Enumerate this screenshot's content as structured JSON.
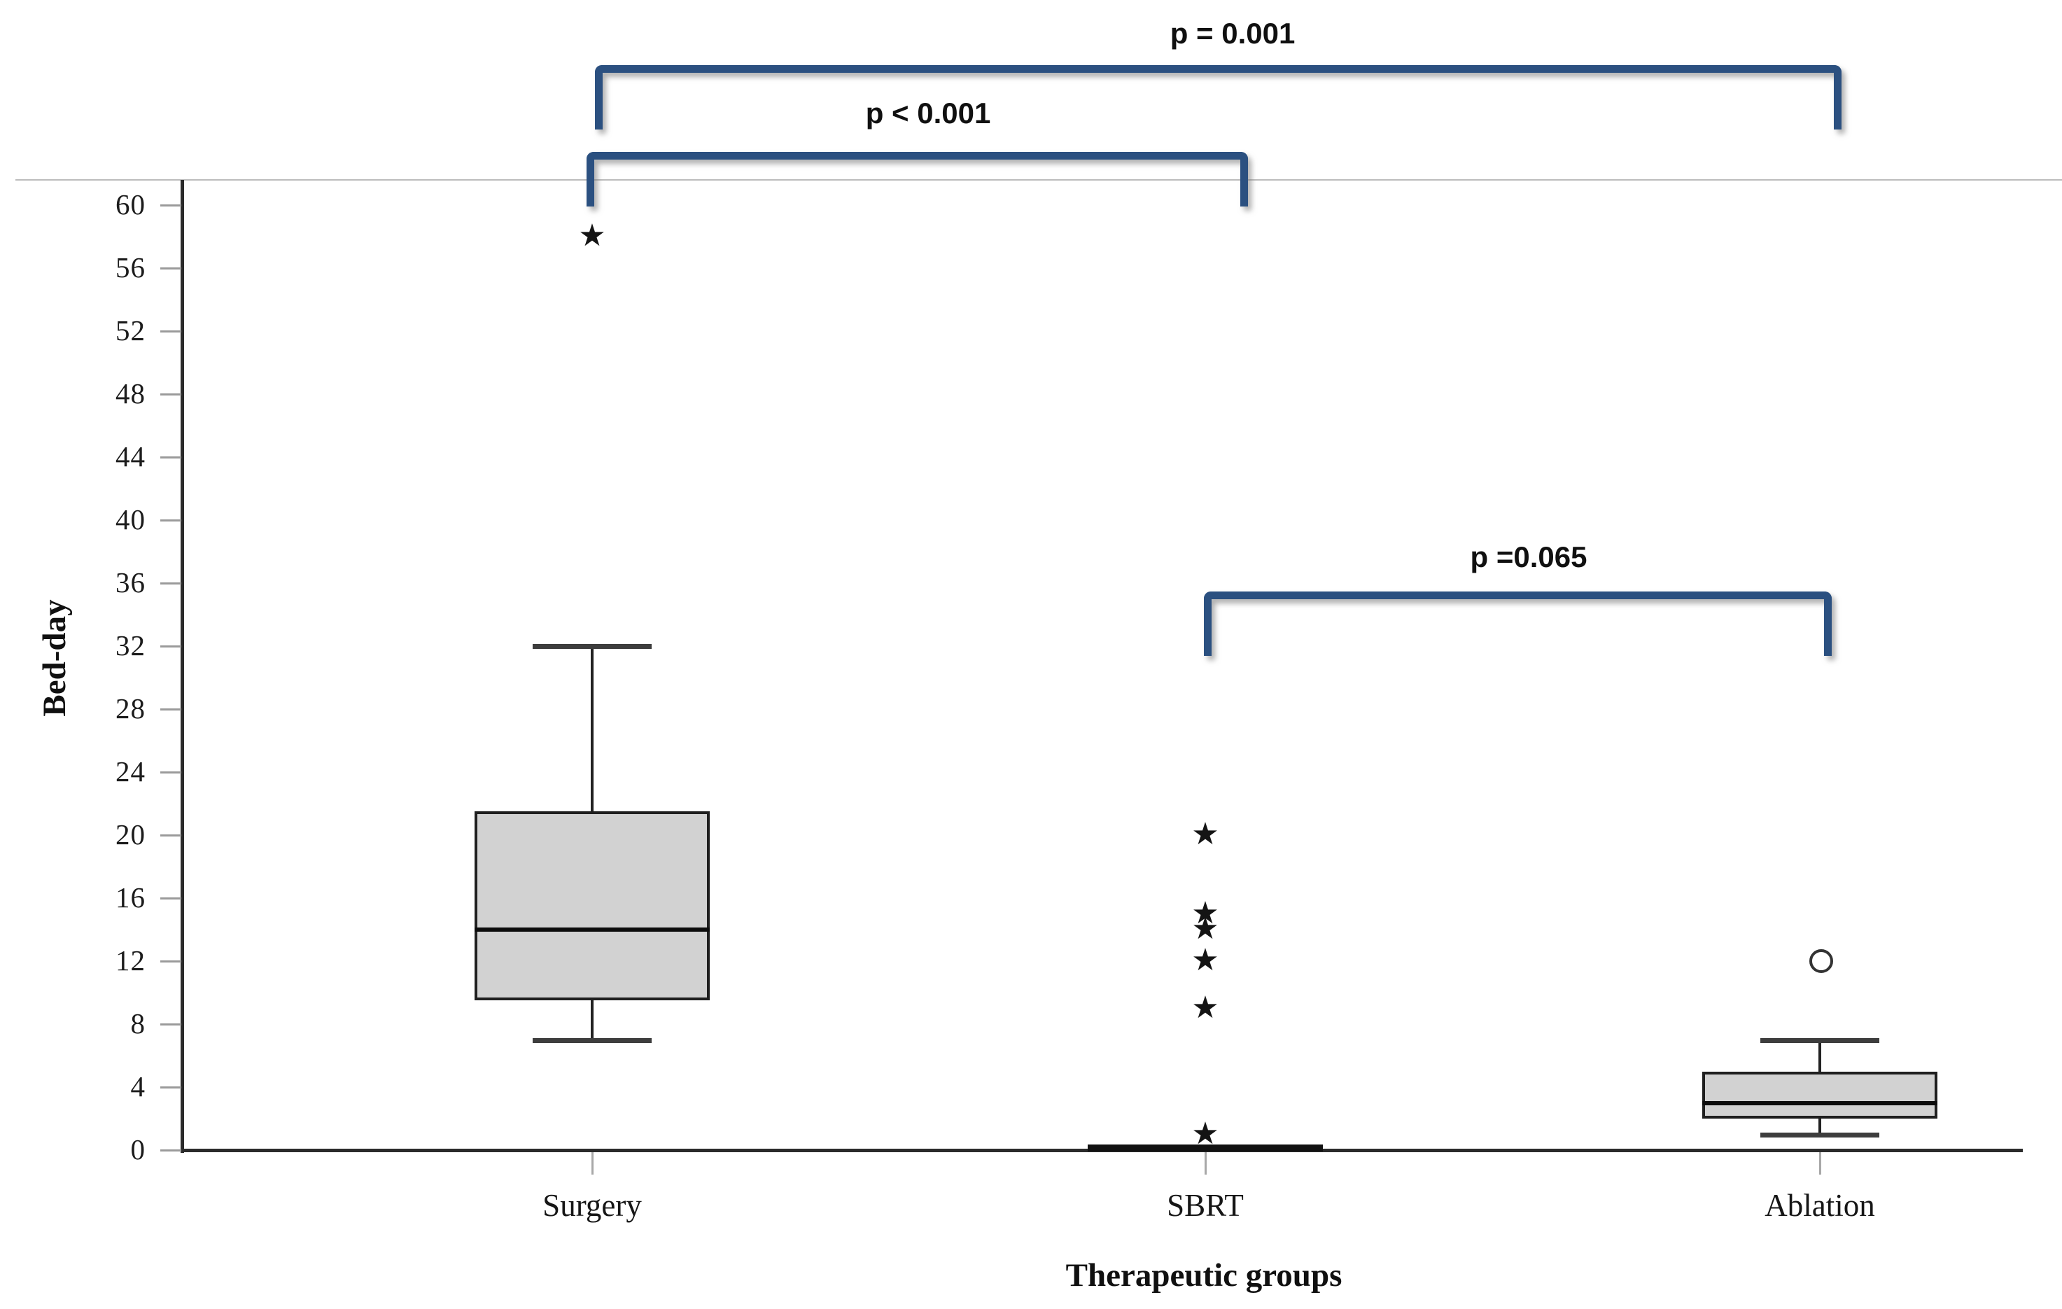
{
  "figure": {
    "background": "#ffffff",
    "accent_blue": "#2b5080",
    "box_fill": "#d2d2d2"
  },
  "chart_data": {
    "type": "boxplot",
    "title": "",
    "xlabel": "Therapeutic groups",
    "ylabel": "Bed-day",
    "ylim": [
      0,
      60
    ],
    "ytick_step": 4,
    "yticks": [
      0,
      4,
      8,
      12,
      16,
      20,
      24,
      28,
      32,
      36,
      40,
      44,
      48,
      52,
      56,
      60
    ],
    "grid": "off",
    "legend": "none",
    "categories": [
      "Surgery",
      "SBRT",
      "Ablation"
    ],
    "series": [
      {
        "name": "Surgery",
        "whisker_low": 7,
        "q1": 9.5,
        "median": 14,
        "q3": 21.5,
        "whisker_high": 32,
        "collapsed": false,
        "outliers": [
          {
            "value": 58,
            "marker": "star"
          }
        ]
      },
      {
        "name": "SBRT",
        "whisker_low": 0,
        "q1": 0,
        "median": 0,
        "q3": 0,
        "whisker_high": 0,
        "collapsed": true,
        "outliers": [
          {
            "value": 20,
            "marker": "star"
          },
          {
            "value": 15,
            "marker": "star"
          },
          {
            "value": 14,
            "marker": "star"
          },
          {
            "value": 12,
            "marker": "star"
          },
          {
            "value": 9,
            "marker": "star"
          },
          {
            "value": 1,
            "marker": "star"
          }
        ]
      },
      {
        "name": "Ablation",
        "whisker_low": 1,
        "q1": 2,
        "median": 3,
        "q3": 5,
        "whisker_high": 7,
        "collapsed": false,
        "outliers": [
          {
            "value": 12,
            "marker": "circle"
          }
        ]
      }
    ],
    "comparisons": [
      {
        "between": [
          "Surgery",
          "Ablation"
        ],
        "label": "p = 0.001"
      },
      {
        "between": [
          "Surgery",
          "SBRT"
        ],
        "label": "p < 0.001"
      },
      {
        "between": [
          "SBRT",
          "Ablation"
        ],
        "label": "p =0.065"
      }
    ]
  }
}
